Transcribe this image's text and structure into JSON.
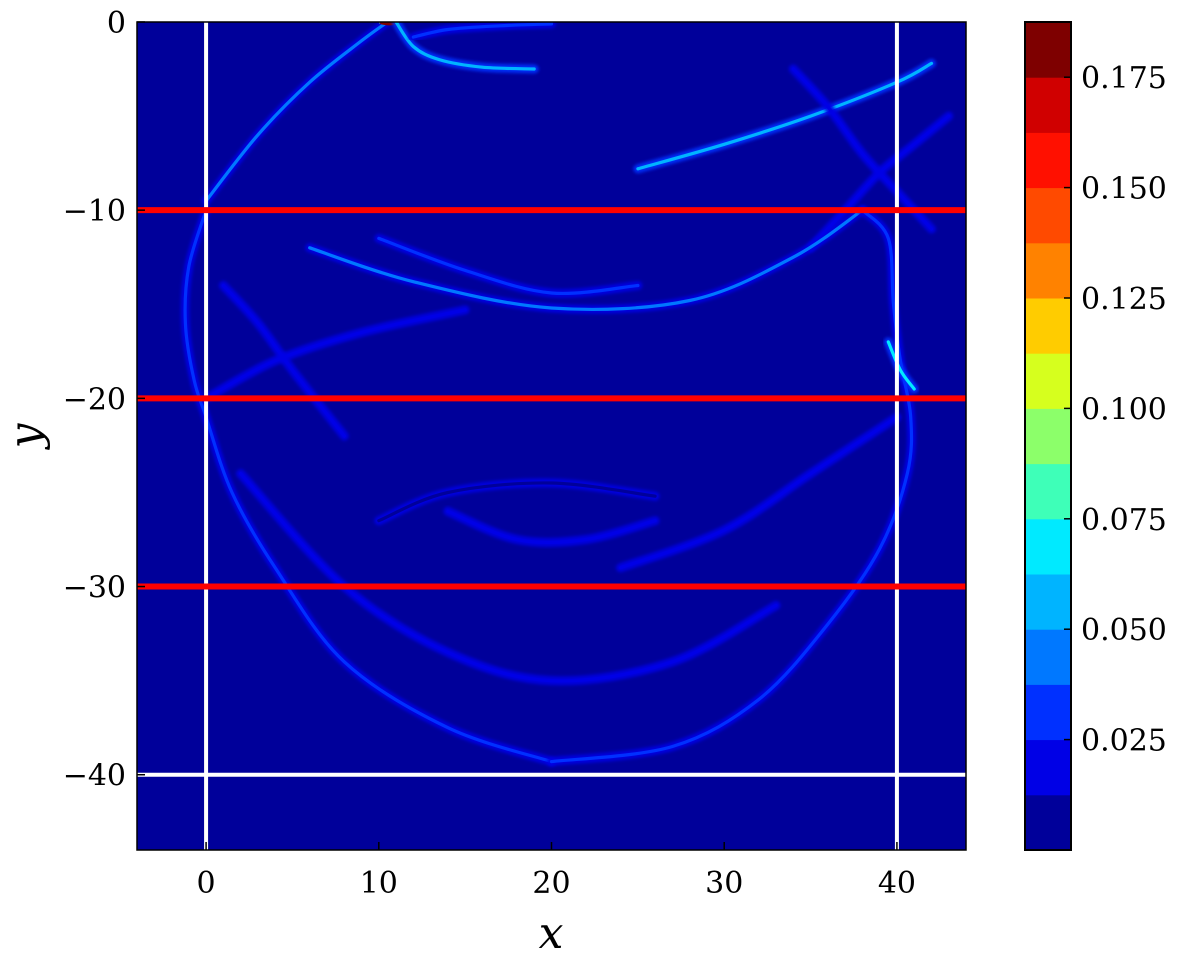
{
  "chart_data": {
    "type": "heatmap",
    "title": "",
    "xlabel": "x",
    "ylabel": "y",
    "xlim": [
      -4,
      44
    ],
    "ylim": [
      -44,
      0
    ],
    "x_ticks": [
      0,
      10,
      20,
      30,
      40
    ],
    "y_ticks": [
      0,
      -10,
      -20,
      -30,
      -40
    ],
    "x_tick_labels": [
      "0",
      "10",
      "20",
      "30",
      "40"
    ],
    "y_tick_labels": [
      "0",
      "−10",
      "−20",
      "−30",
      "−40"
    ],
    "background_value": 0.005,
    "colorbar": {
      "vmin": 0.0,
      "vmax": 0.1875,
      "levels": [
        0.0,
        0.0125,
        0.025,
        0.0375,
        0.05,
        0.0625,
        0.075,
        0.0875,
        0.1,
        0.1125,
        0.125,
        0.1375,
        0.15,
        0.1625,
        0.175,
        0.1875
      ],
      "colors": [
        "#00009a",
        "#0000e6",
        "#0030ff",
        "#0078ff",
        "#00b4ff",
        "#00eaff",
        "#3effb8",
        "#8cff6a",
        "#d6ff1e",
        "#ffcc00",
        "#ff8200",
        "#ff4a00",
        "#ff1000",
        "#d00000",
        "#7e0000"
      ],
      "ticks": [
        0.025,
        0.05,
        0.075,
        0.1,
        0.125,
        0.15,
        0.175
      ],
      "tick_labels": [
        "0.025",
        "0.050",
        "0.075",
        "0.100",
        "0.125",
        "0.150",
        "0.175"
      ]
    },
    "reference_lines": [
      {
        "orientation": "vertical",
        "value": 0,
        "color": "#ffffff"
      },
      {
        "orientation": "vertical",
        "value": 40,
        "color": "#ffffff"
      },
      {
        "orientation": "horizontal",
        "value": -40,
        "color": "#ffffff"
      },
      {
        "orientation": "horizontal",
        "value": -10,
        "color": "#ff0000"
      },
      {
        "orientation": "horizontal",
        "value": -20,
        "color": "#ff0000"
      },
      {
        "orientation": "horizontal",
        "value": -30,
        "color": "#ff0000"
      }
    ],
    "wavefronts": [
      {
        "name": "left-upper-arc",
        "points": [
          [
            0,
            -9.5
          ],
          [
            3,
            -6
          ],
          [
            6,
            -3.2
          ],
          [
            9,
            -1
          ],
          [
            10.5,
            0
          ]
        ],
        "value": 0.04
      },
      {
        "name": "source-peak",
        "points": [
          [
            10.2,
            0
          ],
          [
            10.6,
            -0.05
          ],
          [
            11,
            0
          ]
        ],
        "value": 0.18
      },
      {
        "name": "top-hyperbola-1",
        "points": [
          [
            11,
            0
          ],
          [
            12,
            -1.3
          ],
          [
            13.5,
            -2
          ],
          [
            16,
            -2.4
          ],
          [
            19,
            -2.5
          ]
        ],
        "value": 0.06
      },
      {
        "name": "top-hyperbola-2",
        "points": [
          [
            12,
            -0.8
          ],
          [
            14,
            -0.4
          ],
          [
            17,
            -0.2
          ],
          [
            20,
            -0.1
          ]
        ],
        "value": 0.03
      },
      {
        "name": "right-upper-arc",
        "points": [
          [
            25,
            -7.8
          ],
          [
            30,
            -6.5
          ],
          [
            35,
            -5
          ],
          [
            40,
            -3.2
          ],
          [
            42,
            -2.2
          ]
        ],
        "value": 0.06
      },
      {
        "name": "right-cross-1",
        "points": [
          [
            34,
            -2.5
          ],
          [
            36,
            -4.5
          ],
          [
            38,
            -7
          ],
          [
            40,
            -9
          ],
          [
            42,
            -11
          ]
        ],
        "value": 0.02
      },
      {
        "name": "right-cross-2",
        "points": [
          [
            43,
            -5
          ],
          [
            41,
            -6.5
          ],
          [
            39,
            -8
          ],
          [
            37,
            -10
          ],
          [
            35,
            -12
          ]
        ],
        "value": 0.02
      },
      {
        "name": "mid-bowl-upper",
        "points": [
          [
            6,
            -12
          ],
          [
            12,
            -13.8
          ],
          [
            20,
            -15.2
          ],
          [
            28,
            -14.8
          ],
          [
            34,
            -12.5
          ],
          [
            38,
            -10
          ]
        ],
        "value": 0.04
      },
      {
        "name": "mid-bowl-inner",
        "points": [
          [
            10,
            -11.5
          ],
          [
            15,
            -13.2
          ],
          [
            20,
            -14.4
          ],
          [
            25,
            -14
          ]
        ],
        "value": 0.025
      },
      {
        "name": "left-circle-side",
        "points": [
          [
            0,
            -10
          ],
          [
            -1,
            -13
          ],
          [
            -1.2,
            -16
          ],
          [
            -0.7,
            -19
          ],
          [
            0,
            -21
          ],
          [
            1.5,
            -25
          ],
          [
            4,
            -29
          ],
          [
            8,
            -34
          ],
          [
            14,
            -37.5
          ],
          [
            20,
            -39.3
          ]
        ],
        "value": 0.035
      },
      {
        "name": "right-circle-side",
        "points": [
          [
            20,
            -39.3
          ],
          [
            27,
            -38.5
          ],
          [
            32,
            -36
          ],
          [
            36,
            -32
          ],
          [
            39,
            -28
          ],
          [
            40.6,
            -24
          ],
          [
            40.8,
            -21
          ],
          [
            40.2,
            -18
          ],
          [
            39.8,
            -15
          ],
          [
            39.5,
            -11.5
          ],
          [
            38,
            -10
          ]
        ],
        "value": 0.035
      },
      {
        "name": "right-side-bright",
        "points": [
          [
            39.5,
            -17
          ],
          [
            40.2,
            -18.5
          ],
          [
            41,
            -19.5
          ]
        ],
        "value": 0.07
      },
      {
        "name": "lower-bowl",
        "points": [
          [
            2,
            -24
          ],
          [
            8,
            -30
          ],
          [
            14,
            -33.5
          ],
          [
            20,
            -35
          ],
          [
            27,
            -34
          ],
          [
            33,
            -31
          ]
        ],
        "value": 0.02
      },
      {
        "name": "deep-bowl",
        "points": [
          [
            14,
            -26
          ],
          [
            18,
            -27.5
          ],
          [
            22,
            -27.5
          ],
          [
            26,
            -26.5
          ]
        ],
        "value": 0.02
      },
      {
        "name": "diag-lower-right",
        "points": [
          [
            24,
            -29
          ],
          [
            30,
            -27
          ],
          [
            35,
            -24
          ],
          [
            40,
            -21
          ]
        ],
        "value": 0.02
      },
      {
        "name": "diag-left",
        "points": [
          [
            0,
            -20
          ],
          [
            4,
            -18
          ],
          [
            9,
            -16.5
          ],
          [
            15,
            -15.3
          ]
        ],
        "value": 0.015
      },
      {
        "name": "diag-left-cross",
        "points": [
          [
            1,
            -14
          ],
          [
            3,
            -16
          ],
          [
            5,
            -18.5
          ],
          [
            8,
            -22
          ]
        ],
        "value": 0.015
      },
      {
        "name": "lower-ghost-arc",
        "points": [
          [
            10,
            -26.5
          ],
          [
            14,
            -25
          ],
          [
            20,
            -24.5
          ],
          [
            26,
            -25.2
          ]
        ],
        "value": 0.012
      }
    ]
  }
}
